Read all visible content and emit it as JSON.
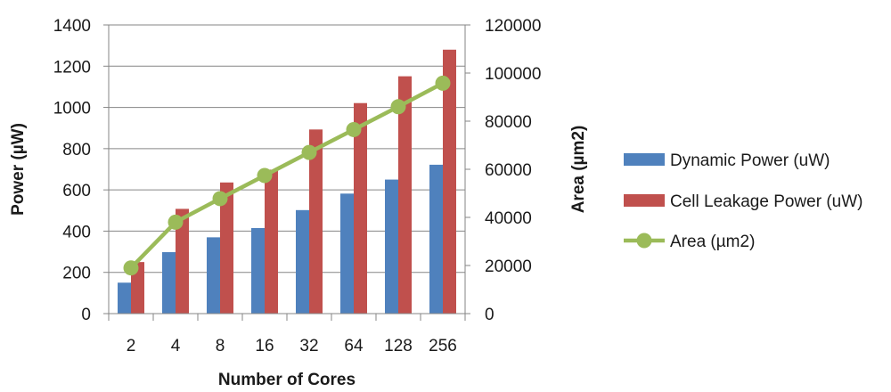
{
  "chart_data": {
    "type": "bar",
    "title": "",
    "categories": [
      "2",
      "4",
      "8",
      "16",
      "32",
      "64",
      "128",
      "256"
    ],
    "xlabel": "Number of Cores",
    "ylabel": "Power (µW)",
    "y2label": "Area (µm2)",
    "ylim": [
      0,
      1400
    ],
    "y2lim": [
      0,
      120000
    ],
    "yticks": [
      0,
      200,
      400,
      600,
      800,
      1000,
      1200,
      1400
    ],
    "y2ticks": [
      0,
      20000,
      40000,
      60000,
      80000,
      100000,
      120000
    ],
    "grid": true,
    "legend_position": "right",
    "series": [
      {
        "name": "Dynamic Power (uW)",
        "kind": "bar",
        "axis": "left",
        "color": "#4F81BD",
        "values": [
          150,
          298,
          370,
          415,
          502,
          582,
          650,
          722
        ]
      },
      {
        "name": "Cell Leakage Power (uW)",
        "kind": "bar",
        "axis": "left",
        "color": "#C0504D",
        "values": [
          250,
          508,
          636,
          698,
          893,
          1021,
          1151,
          1280
        ]
      },
      {
        "name": "Area (µm2)",
        "kind": "line",
        "axis": "right",
        "color": "#9BBB59",
        "values": [
          19000,
          38000,
          47800,
          57400,
          67000,
          76500,
          86000,
          95800
        ]
      }
    ]
  }
}
